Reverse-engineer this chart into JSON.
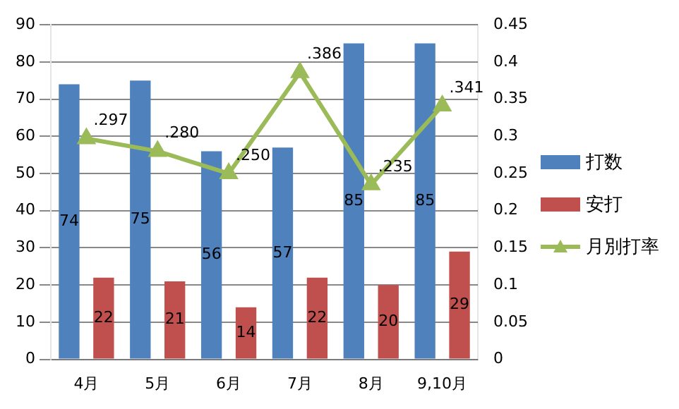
{
  "chart_data": {
    "type": "bar",
    "categories": [
      "4月",
      "5月",
      "6月",
      "7月",
      "8月",
      "9,10月"
    ],
    "series": [
      {
        "name": "打数",
        "color": "#4f81bd",
        "values": [
          74,
          75,
          56,
          57,
          85,
          85
        ],
        "value_labels": [
          "74",
          "75",
          "56",
          "57",
          "85",
          "85"
        ]
      },
      {
        "name": "安打",
        "color": "#c0504d",
        "values": [
          22,
          21,
          14,
          22,
          20,
          29
        ],
        "value_labels": [
          "22",
          "21",
          "14",
          "22",
          "20",
          "29"
        ]
      },
      {
        "name": "月別打率",
        "type": "line",
        "axis": "y2",
        "color": "#9bbb59",
        "marker": "triangle",
        "values": [
          0.297,
          0.28,
          0.25,
          0.386,
          0.235,
          0.341
        ],
        "value_labels": [
          ".297",
          ".280",
          ".250",
          ".386",
          ".235",
          ".341"
        ]
      }
    ],
    "ylim": [
      0,
      90
    ],
    "yticks": [
      0,
      10,
      20,
      30,
      40,
      50,
      60,
      70,
      80,
      90
    ],
    "y2lim": [
      0,
      0.45
    ],
    "y2ticks": [
      0,
      0.05,
      0.1,
      0.15,
      0.2,
      0.25,
      0.3,
      0.35,
      0.4,
      0.45
    ],
    "grid": "y",
    "legend": "right"
  }
}
